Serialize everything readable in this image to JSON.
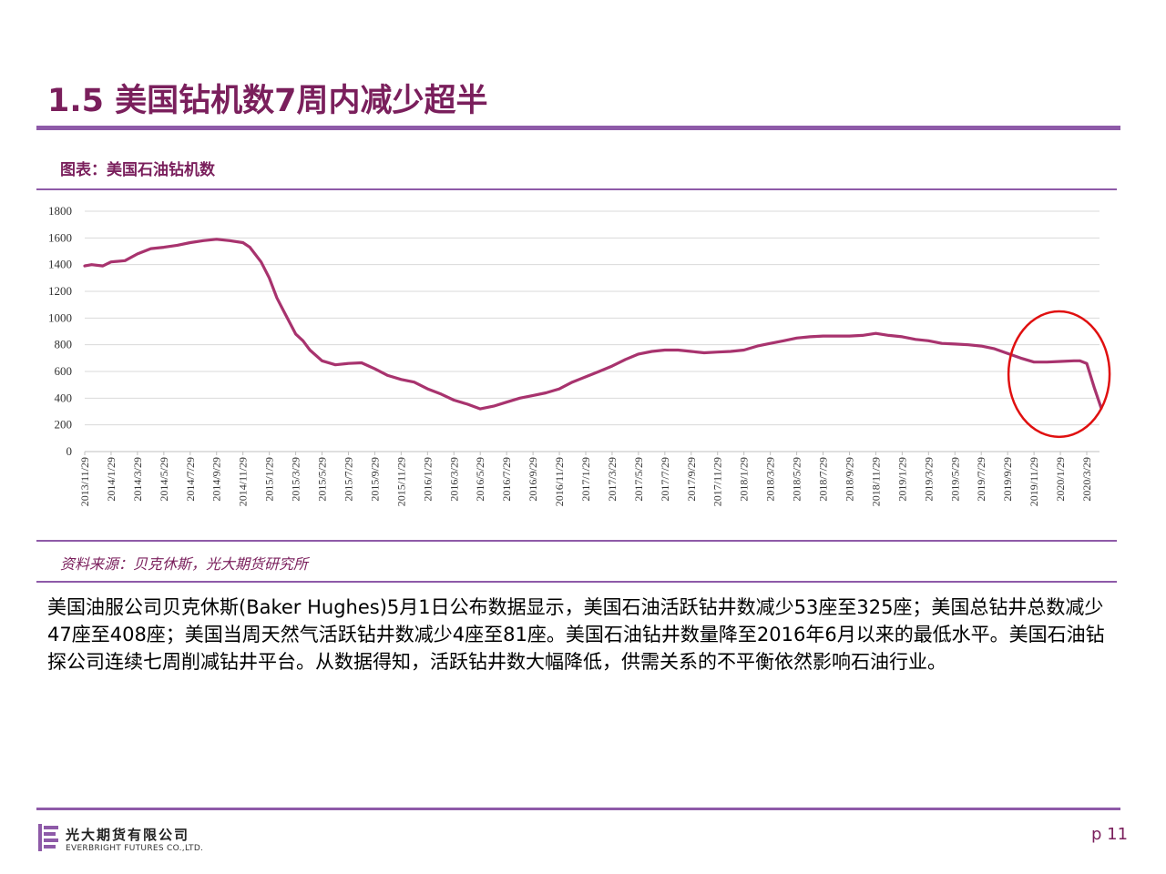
{
  "slide": {
    "title": "1.5 美国钻机数7周内减少超半",
    "figure_label": "图表：美国石油钻机数",
    "source": "资料来源：贝克休斯，光大期货研究所",
    "body": "美国油服公司贝克休斯(Baker Hughes)5月1日公布数据显示，美国石油活跃钻井数减少53座至325座；美国总钻井总数减少47座至408座；美国当周天然气活跃钻井数减少4座至81座。美国石油钻井数量降至2016年6月以来的最低水平。美国石油钻探公司连续七周削减钻井平台。从数据得知，活跃钻井数大幅降低，供需关系的不平衡依然影响石油行业。"
  },
  "footer": {
    "company_cn": "光大期货有限公司",
    "company_en": "EVERBRIGHT FUTURES CO.,LTD.",
    "page": "p 11"
  },
  "colors": {
    "accent": "#7a1f5c",
    "rule": "#8e5aa8",
    "series": "#a8336e",
    "highlight_circle": "#e01010",
    "grid": "#d9d9d9"
  },
  "chart_data": {
    "type": "line",
    "title": "",
    "xlabel": "",
    "ylabel": "",
    "ylim": [
      0,
      1800
    ],
    "yticks": [
      0,
      200,
      400,
      600,
      800,
      1000,
      1200,
      1400,
      1600,
      1800
    ],
    "xtick_labels": [
      "2013/11/29",
      "2014/1/29",
      "2014/3/29",
      "2014/5/29",
      "2014/7/29",
      "2014/9/29",
      "2014/11/29",
      "2015/1/29",
      "2015/3/29",
      "2015/5/29",
      "2015/7/29",
      "2015/9/29",
      "2015/11/29",
      "2016/1/29",
      "2016/3/29",
      "2016/5/29",
      "2016/7/29",
      "2016/9/29",
      "2016/11/29",
      "2017/1/29",
      "2017/3/29",
      "2017/5/29",
      "2017/7/29",
      "2017/9/29",
      "2017/11/29",
      "2018/1/29",
      "2018/3/29",
      "2018/5/29",
      "2018/7/29",
      "2018/9/29",
      "2018/11/29",
      "2019/1/29",
      "2019/3/29",
      "2019/5/29",
      "2019/7/29",
      "2019/9/29",
      "2019/11/29",
      "2020/1/29",
      "2020/3/29"
    ],
    "grid": true,
    "legend": "none",
    "highlight": "ellipse around the 2019/11–2020/4 decline",
    "series": [
      {
        "x": [
          "2013/11/29",
          "2013/12/15",
          "2014/1/10",
          "2014/1/29",
          "2014/3/1",
          "2014/3/29",
          "2014/4/29",
          "2014/5/29",
          "2014/6/29",
          "2014/7/29",
          "2014/8/29",
          "2014/9/29",
          "2014/10/29",
          "2014/11/29",
          "2014/12/15",
          "2015/1/10",
          "2015/1/29",
          "2015/2/15",
          "2015/3/1",
          "2015/3/29",
          "2015/4/15",
          "2015/5/1",
          "2015/5/29",
          "2015/6/29",
          "2015/7/29",
          "2015/8/29",
          "2015/9/29",
          "2015/10/29",
          "2015/11/29",
          "2015/12/29",
          "2016/1/29",
          "2016/2/29",
          "2016/3/29",
          "2016/4/29",
          "2016/5/29",
          "2016/6/29",
          "2016/7/29",
          "2016/8/29",
          "2016/9/29",
          "2016/10/29",
          "2016/11/29",
          "2016/12/29",
          "2017/1/29",
          "2017/2/28",
          "2017/3/29",
          "2017/4/29",
          "2017/5/29",
          "2017/6/29",
          "2017/7/29",
          "2017/8/29",
          "2017/9/29",
          "2017/10/29",
          "2017/11/29",
          "2017/12/29",
          "2018/1/29",
          "2018/2/28",
          "2018/3/29",
          "2018/4/29",
          "2018/5/29",
          "2018/6/29",
          "2018/7/29",
          "2018/8/29",
          "2018/9/29",
          "2018/10/29",
          "2018/11/29",
          "2018/12/29",
          "2019/1/29",
          "2019/2/28",
          "2019/3/29",
          "2019/4/29",
          "2019/5/29",
          "2019/6/29",
          "2019/7/29",
          "2019/8/29",
          "2019/9/29",
          "2019/10/29",
          "2019/11/29",
          "2019/12/29",
          "2020/1/29",
          "2020/2/29",
          "2020/3/13",
          "2020/3/29",
          "2020/4/15",
          "2020/5/1"
        ],
        "values": [
          1390,
          1400,
          1390,
          1420,
          1430,
          1480,
          1520,
          1530,
          1545,
          1565,
          1580,
          1590,
          1580,
          1565,
          1530,
          1420,
          1300,
          1150,
          1060,
          880,
          830,
          760,
          680,
          650,
          660,
          665,
          620,
          570,
          540,
          520,
          470,
          430,
          385,
          355,
          320,
          340,
          370,
          400,
          420,
          440,
          470,
          520,
          560,
          600,
          640,
          690,
          730,
          750,
          760,
          760,
          750,
          740,
          745,
          750,
          760,
          790,
          810,
          830,
          850,
          860,
          865,
          865,
          865,
          870,
          885,
          870,
          860,
          840,
          830,
          810,
          805,
          800,
          790,
          770,
          735,
          700,
          670,
          670,
          675,
          680,
          680,
          660,
          480,
          325
        ]
      }
    ]
  }
}
